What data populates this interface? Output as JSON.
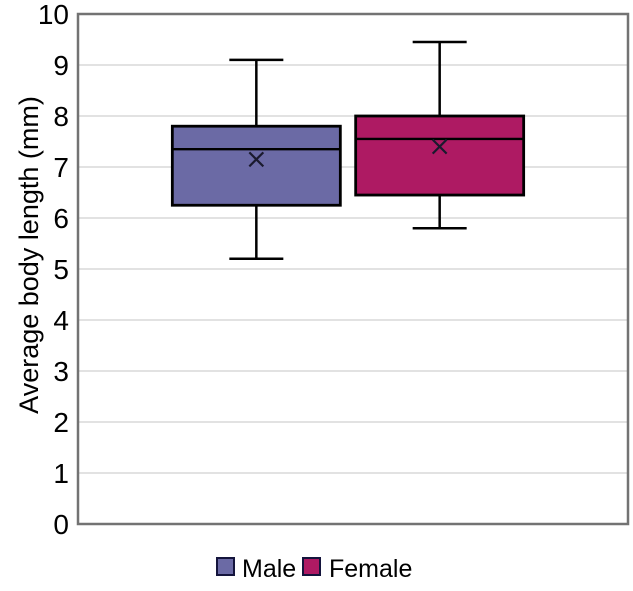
{
  "chart_data": {
    "type": "boxplot",
    "title": "",
    "xlabel": "",
    "ylabel": "Average body length (mm)",
    "ylim": [
      0,
      10
    ],
    "yticks": [
      0,
      1,
      2,
      3,
      4,
      5,
      6,
      7,
      8,
      9,
      10
    ],
    "grid": "horizontal",
    "legend_position": "bottom-center",
    "colors": {
      "background": "#ffffff",
      "gridline": "#d9d9d9",
      "plot_border": "#737373",
      "box_outline": "#000000",
      "text": "#000000"
    },
    "series": [
      {
        "name": "Male",
        "fill": "#6B6AA5",
        "whisker_low": 5.2,
        "q1": 6.25,
        "median": 7.35,
        "mean": 7.15,
        "q3": 7.8,
        "whisker_high": 9.1
      },
      {
        "name": "Female",
        "fill": "#AE1A63",
        "whisker_low": 5.8,
        "q1": 6.45,
        "median": 7.55,
        "mean": 7.4,
        "q3": 8.0,
        "whisker_high": 9.45
      }
    ]
  }
}
